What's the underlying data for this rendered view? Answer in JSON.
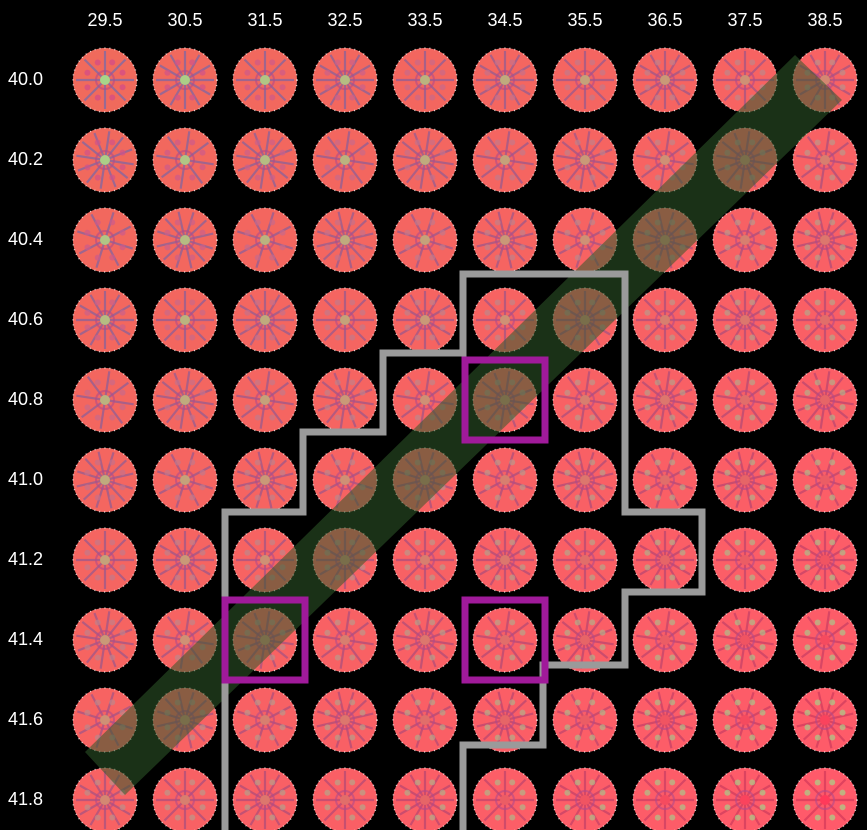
{
  "grid": {
    "column_labels": [
      "29.5",
      "30.5",
      "31.5",
      "32.5",
      "33.5",
      "34.5",
      "35.5",
      "36.5",
      "37.5",
      "38.5"
    ],
    "row_labels": [
      "40.0",
      "40.2",
      "40.4",
      "40.6",
      "40.8",
      "41.0",
      "41.2",
      "41.4",
      "41.6",
      "41.8"
    ]
  },
  "colors": {
    "background": "#000000",
    "tile_base": "#f06a5c",
    "tile_center": "#a6d68a",
    "tile_ray": "#7a6aa8",
    "diagonal_band": "#2f5a2a",
    "region_outline": "#9a9a9a",
    "highlight_box": "#a01a9a"
  },
  "highlighted_cells": [
    {
      "col": "34.5",
      "row": "40.8"
    },
    {
      "col": "31.5",
      "row": "41.4"
    },
    {
      "col": "34.5",
      "row": "41.4"
    }
  ]
}
